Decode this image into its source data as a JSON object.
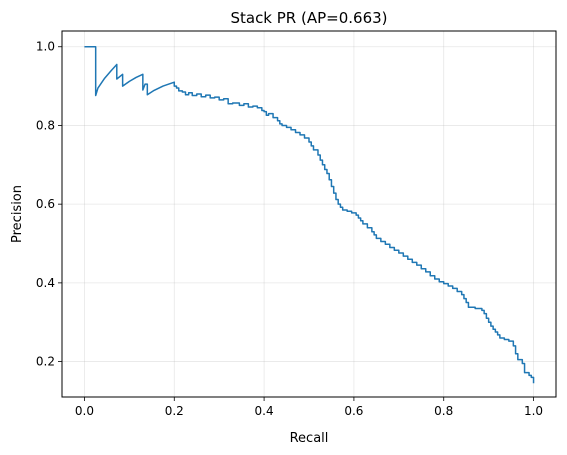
{
  "chart_data": {
    "type": "line",
    "title": "Stack PR (AP=0.663)",
    "xlabel": "Recall",
    "ylabel": "Precision",
    "xlim": [
      -0.05,
      1.05
    ],
    "ylim": [
      0.11,
      1.04
    ],
    "xticks": [
      "0.0",
      "0.2",
      "0.4",
      "0.6",
      "0.8",
      "1.0"
    ],
    "yticks": [
      "0.2",
      "0.4",
      "0.6",
      "0.8",
      "1.0"
    ],
    "grid": true,
    "legend": "none",
    "series": [
      {
        "color": "#1f77b4",
        "points": [
          [
            0.0,
            1.0
          ],
          [
            0.025,
            1.0
          ],
          [
            0.025,
            0.876
          ],
          [
            0.03,
            0.895
          ],
          [
            0.045,
            0.92
          ],
          [
            0.06,
            0.94
          ],
          [
            0.072,
            0.955
          ],
          [
            0.072,
            0.918
          ],
          [
            0.085,
            0.93
          ],
          [
            0.085,
            0.9
          ],
          [
            0.1,
            0.912
          ],
          [
            0.115,
            0.922
          ],
          [
            0.13,
            0.93
          ],
          [
            0.13,
            0.89
          ],
          [
            0.135,
            0.905
          ],
          [
            0.14,
            0.905
          ],
          [
            0.14,
            0.878
          ],
          [
            0.155,
            0.889
          ],
          [
            0.175,
            0.9
          ],
          [
            0.2,
            0.91
          ],
          [
            0.2,
            0.9
          ],
          [
            0.205,
            0.9
          ],
          [
            0.205,
            0.895
          ],
          [
            0.21,
            0.895
          ],
          [
            0.21,
            0.888
          ],
          [
            0.218,
            0.888
          ],
          [
            0.218,
            0.885
          ],
          [
            0.225,
            0.885
          ],
          [
            0.225,
            0.878
          ],
          [
            0.232,
            0.878
          ],
          [
            0.232,
            0.883
          ],
          [
            0.24,
            0.883
          ],
          [
            0.24,
            0.876
          ],
          [
            0.25,
            0.876
          ],
          [
            0.25,
            0.88
          ],
          [
            0.26,
            0.88
          ],
          [
            0.26,
            0.873
          ],
          [
            0.27,
            0.873
          ],
          [
            0.27,
            0.877
          ],
          [
            0.28,
            0.877
          ],
          [
            0.28,
            0.87
          ],
          [
            0.29,
            0.87
          ],
          [
            0.29,
            0.872
          ],
          [
            0.3,
            0.872
          ],
          [
            0.3,
            0.865
          ],
          [
            0.31,
            0.865
          ],
          [
            0.31,
            0.868
          ],
          [
            0.32,
            0.868
          ],
          [
            0.32,
            0.855
          ],
          [
            0.33,
            0.855
          ],
          [
            0.33,
            0.857
          ],
          [
            0.345,
            0.857
          ],
          [
            0.345,
            0.851
          ],
          [
            0.355,
            0.851
          ],
          [
            0.355,
            0.855
          ],
          [
            0.365,
            0.855
          ],
          [
            0.365,
            0.847
          ],
          [
            0.375,
            0.847
          ],
          [
            0.375,
            0.849
          ],
          [
            0.385,
            0.849
          ],
          [
            0.385,
            0.845
          ],
          [
            0.395,
            0.845
          ],
          [
            0.395,
            0.838
          ],
          [
            0.4,
            0.838
          ],
          [
            0.4,
            0.835
          ],
          [
            0.405,
            0.835
          ],
          [
            0.405,
            0.826
          ],
          [
            0.41,
            0.826
          ],
          [
            0.41,
            0.83
          ],
          [
            0.42,
            0.83
          ],
          [
            0.42,
            0.82
          ],
          [
            0.43,
            0.82
          ],
          [
            0.43,
            0.812
          ],
          [
            0.435,
            0.812
          ],
          [
            0.435,
            0.804
          ],
          [
            0.44,
            0.804
          ],
          [
            0.44,
            0.8
          ],
          [
            0.45,
            0.8
          ],
          [
            0.45,
            0.795
          ],
          [
            0.46,
            0.795
          ],
          [
            0.46,
            0.789
          ],
          [
            0.47,
            0.789
          ],
          [
            0.47,
            0.782
          ],
          [
            0.48,
            0.782
          ],
          [
            0.48,
            0.776
          ],
          [
            0.49,
            0.776
          ],
          [
            0.49,
            0.768
          ],
          [
            0.5,
            0.768
          ],
          [
            0.5,
            0.758
          ],
          [
            0.505,
            0.758
          ],
          [
            0.505,
            0.748
          ],
          [
            0.51,
            0.748
          ],
          [
            0.51,
            0.738
          ],
          [
            0.52,
            0.738
          ],
          [
            0.52,
            0.725
          ],
          [
            0.525,
            0.725
          ],
          [
            0.525,
            0.712
          ],
          [
            0.53,
            0.712
          ],
          [
            0.53,
            0.7
          ],
          [
            0.535,
            0.7
          ],
          [
            0.535,
            0.688
          ],
          [
            0.54,
            0.688
          ],
          [
            0.54,
            0.678
          ],
          [
            0.545,
            0.678
          ],
          [
            0.545,
            0.662
          ],
          [
            0.55,
            0.662
          ],
          [
            0.55,
            0.645
          ],
          [
            0.555,
            0.645
          ],
          [
            0.555,
            0.628
          ],
          [
            0.56,
            0.628
          ],
          [
            0.56,
            0.612
          ],
          [
            0.565,
            0.612
          ],
          [
            0.565,
            0.6
          ],
          [
            0.57,
            0.6
          ],
          [
            0.57,
            0.592
          ],
          [
            0.575,
            0.592
          ],
          [
            0.575,
            0.585
          ],
          [
            0.585,
            0.585
          ],
          [
            0.585,
            0.582
          ],
          [
            0.595,
            0.582
          ],
          [
            0.595,
            0.578
          ],
          [
            0.605,
            0.578
          ],
          [
            0.605,
            0.572
          ],
          [
            0.61,
            0.572
          ],
          [
            0.61,
            0.565
          ],
          [
            0.615,
            0.565
          ],
          [
            0.615,
            0.558
          ],
          [
            0.62,
            0.558
          ],
          [
            0.62,
            0.55
          ],
          [
            0.63,
            0.55
          ],
          [
            0.63,
            0.54
          ],
          [
            0.64,
            0.54
          ],
          [
            0.64,
            0.53
          ],
          [
            0.645,
            0.53
          ],
          [
            0.645,
            0.522
          ],
          [
            0.65,
            0.522
          ],
          [
            0.65,
            0.513
          ],
          [
            0.66,
            0.513
          ],
          [
            0.66,
            0.505
          ],
          [
            0.67,
            0.505
          ],
          [
            0.67,
            0.498
          ],
          [
            0.68,
            0.498
          ],
          [
            0.68,
            0.49
          ],
          [
            0.69,
            0.49
          ],
          [
            0.69,
            0.483
          ],
          [
            0.7,
            0.483
          ],
          [
            0.7,
            0.476
          ],
          [
            0.71,
            0.476
          ],
          [
            0.71,
            0.468
          ],
          [
            0.72,
            0.468
          ],
          [
            0.72,
            0.46
          ],
          [
            0.73,
            0.46
          ],
          [
            0.73,
            0.452
          ],
          [
            0.74,
            0.452
          ],
          [
            0.74,
            0.445
          ],
          [
            0.75,
            0.445
          ],
          [
            0.75,
            0.436
          ],
          [
            0.76,
            0.436
          ],
          [
            0.76,
            0.428
          ],
          [
            0.77,
            0.428
          ],
          [
            0.77,
            0.418
          ],
          [
            0.78,
            0.418
          ],
          [
            0.78,
            0.41
          ],
          [
            0.79,
            0.41
          ],
          [
            0.79,
            0.403
          ],
          [
            0.8,
            0.403
          ],
          [
            0.8,
            0.398
          ],
          [
            0.81,
            0.398
          ],
          [
            0.81,
            0.392
          ],
          [
            0.82,
            0.392
          ],
          [
            0.82,
            0.386
          ],
          [
            0.83,
            0.386
          ],
          [
            0.83,
            0.378
          ],
          [
            0.84,
            0.378
          ],
          [
            0.84,
            0.37
          ],
          [
            0.845,
            0.37
          ],
          [
            0.845,
            0.36
          ],
          [
            0.85,
            0.36
          ],
          [
            0.85,
            0.35
          ],
          [
            0.855,
            0.35
          ],
          [
            0.855,
            0.338
          ],
          [
            0.87,
            0.338
          ],
          [
            0.87,
            0.335
          ],
          [
            0.885,
            0.335
          ],
          [
            0.885,
            0.33
          ],
          [
            0.89,
            0.33
          ],
          [
            0.89,
            0.322
          ],
          [
            0.895,
            0.322
          ],
          [
            0.895,
            0.31
          ],
          [
            0.9,
            0.31
          ],
          [
            0.9,
            0.3
          ],
          [
            0.905,
            0.3
          ],
          [
            0.905,
            0.29
          ],
          [
            0.91,
            0.29
          ],
          [
            0.91,
            0.282
          ],
          [
            0.915,
            0.282
          ],
          [
            0.915,
            0.275
          ],
          [
            0.92,
            0.275
          ],
          [
            0.92,
            0.268
          ],
          [
            0.925,
            0.268
          ],
          [
            0.925,
            0.26
          ],
          [
            0.935,
            0.26
          ],
          [
            0.935,
            0.256
          ],
          [
            0.945,
            0.256
          ],
          [
            0.945,
            0.252
          ],
          [
            0.955,
            0.252
          ],
          [
            0.955,
            0.24
          ],
          [
            0.96,
            0.24
          ],
          [
            0.96,
            0.22
          ],
          [
            0.965,
            0.22
          ],
          [
            0.965,
            0.205
          ],
          [
            0.975,
            0.205
          ],
          [
            0.975,
            0.195
          ],
          [
            0.98,
            0.195
          ],
          [
            0.98,
            0.172
          ],
          [
            0.99,
            0.172
          ],
          [
            0.99,
            0.165
          ],
          [
            0.995,
            0.165
          ],
          [
            0.995,
            0.16
          ],
          [
            1.0,
            0.16
          ],
          [
            1.0,
            0.145
          ]
        ]
      }
    ]
  }
}
